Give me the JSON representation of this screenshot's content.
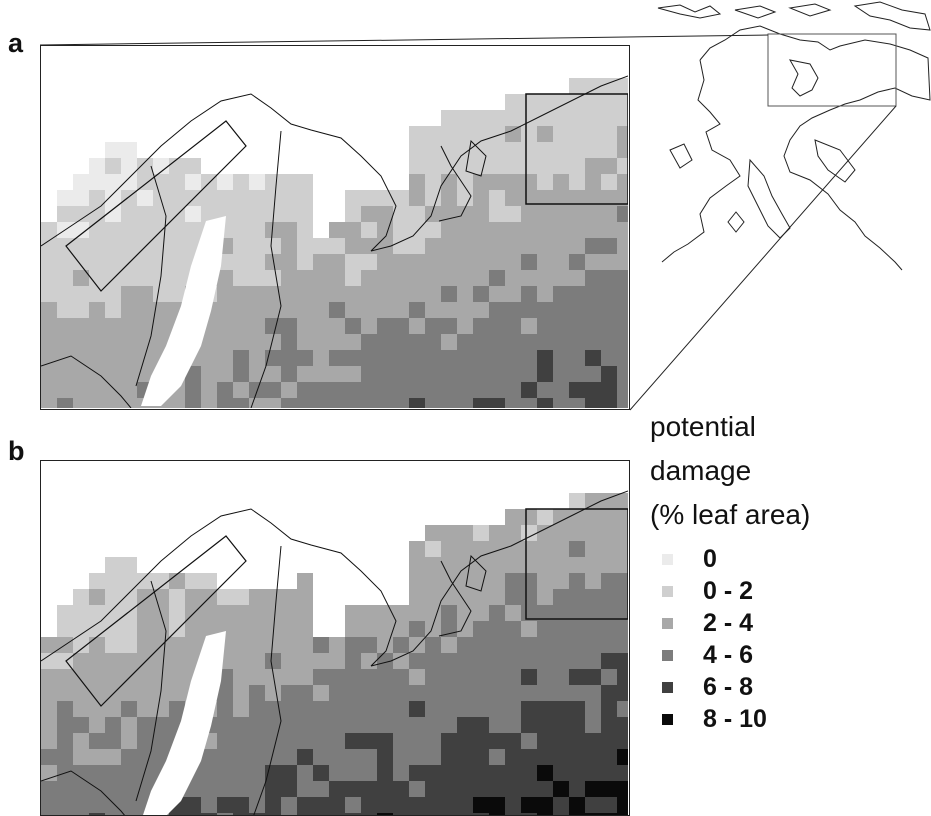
{
  "panels": [
    {
      "label": "a",
      "subregion_box": true,
      "transect_box": true
    },
    {
      "label": "b",
      "subregion_box": true,
      "transect_box": true
    }
  ],
  "legend": {
    "title_lines": [
      "potential",
      "damage",
      "(% leaf area)"
    ],
    "items": [
      {
        "label": "0",
        "color": "#ebebeb"
      },
      {
        "label": "0 - 2",
        "color": "#cfcfcf"
      },
      {
        "label": "2 - 4",
        "color": "#a8a8a8"
      },
      {
        "label": "4 - 6",
        "color": "#7c7c7c"
      },
      {
        "label": "6 - 8",
        "color": "#404040"
      },
      {
        "label": "8 - 10",
        "color": "#0a0a0a"
      }
    ]
  },
  "overview_map": {
    "region_box": true
  }
}
